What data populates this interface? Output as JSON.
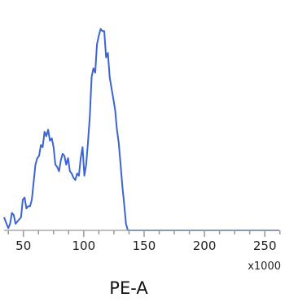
{
  "chart_data": {
    "type": "line",
    "title": "",
    "xlabel": "PE-A",
    "x_multiplier_label": "x1000",
    "ylabel": "",
    "xlim": [
      34,
      262
    ],
    "ylim": [
      0,
      100
    ],
    "x_major_ticks": [
      50,
      100,
      150,
      200,
      250
    ],
    "x_tick_labels": [
      "50",
      "100",
      "150",
      "200",
      "250"
    ],
    "x_minor_ticks": [
      37.5,
      62.5,
      75,
      87.5,
      112.5,
      125,
      137.5,
      162.5,
      175,
      187.5,
      212.5,
      225,
      237.5,
      262.5
    ],
    "grid": false,
    "legend": "none",
    "colors": {
      "line": "#3c64d2",
      "axis": "#aaaaaa",
      "tick": "#999999"
    },
    "series": [
      {
        "x": [
          34,
          36,
          37.5,
          39,
          40.5,
          42,
          43.5,
          45,
          46.5,
          48,
          49.5,
          51,
          52.5,
          54,
          55.5,
          57,
          58.5,
          60,
          61.5,
          63,
          64.5,
          66,
          67.5,
          69,
          70.5,
          72,
          73.5,
          75,
          76.5,
          78,
          79.5,
          81,
          82.5,
          84,
          85.5,
          87,
          88.5,
          90,
          91.5,
          93,
          94.5,
          96,
          97.5,
          99,
          100.5,
          102,
          103.5,
          105,
          106.5,
          108,
          109.5,
          111,
          112.5,
          114,
          115.5,
          117,
          118.5,
          120,
          121.5,
          123,
          124.5,
          126,
          127.5,
          129,
          130.5,
          132,
          133.5,
          135,
          136.5,
          138,
          139.5,
          141,
          142.5,
          144,
          145.5,
          147,
          148,
          149,
          150,
          155,
          170,
          190,
          210,
          230,
          250,
          262
        ],
        "y": [
          6,
          3,
          1,
          3,
          8,
          7,
          3,
          4,
          5,
          6,
          14,
          15,
          10,
          11,
          11,
          14,
          22,
          30,
          33,
          34,
          39,
          38,
          45,
          43,
          46,
          41,
          42,
          38,
          30,
          29,
          27,
          32,
          35,
          34,
          30,
          33,
          27,
          26,
          24,
          23,
          26,
          25,
          33,
          38,
          25,
          30,
          40,
          52,
          70,
          74,
          72,
          85,
          89,
          92,
          91,
          91,
          79,
          81,
          70,
          65,
          60,
          55,
          46,
          40,
          30,
          20,
          12,
          3,
          0,
          0,
          0,
          0,
          0,
          0,
          0,
          0,
          0,
          0,
          0,
          0,
          0,
          0,
          0,
          0,
          0,
          0
        ]
      }
    ]
  }
}
